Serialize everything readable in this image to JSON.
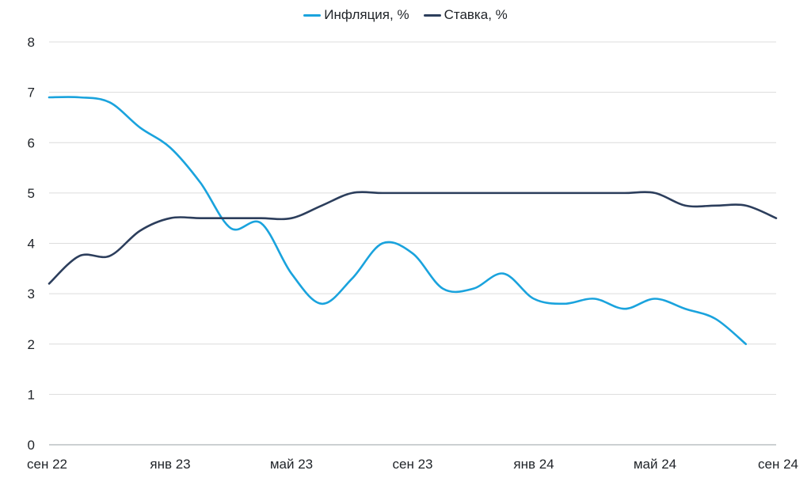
{
  "chart_data": {
    "type": "line",
    "title": "",
    "xlabel": "",
    "ylabel": "",
    "x_tick_labels": [
      "сен 22",
      "янв 23",
      "май 23",
      "сен 23",
      "янв 24",
      "май 24",
      "сен 24"
    ],
    "x_range": [
      "сен 22",
      "сен 24"
    ],
    "y_ticks": [
      0,
      1,
      2,
      3,
      4,
      5,
      6,
      7,
      8
    ],
    "ylim": [
      0,
      8
    ],
    "grid": "horizontal",
    "legend_position": "top-center",
    "series": [
      {
        "name": "Инфляция, %",
        "color": "#1aa3dd",
        "points": [
          [
            "сен 22",
            6.9
          ],
          [
            "окт 22",
            6.9
          ],
          [
            "ноя 22",
            6.8
          ],
          [
            "дек 22",
            6.3
          ],
          [
            "янв 23",
            5.9
          ],
          [
            "фев 23",
            5.2
          ],
          [
            "мар 23",
            4.3
          ],
          [
            "апр 23",
            4.4
          ],
          [
            "май 23",
            3.4
          ],
          [
            "июн 23",
            2.8
          ],
          [
            "июл 23",
            3.3
          ],
          [
            "авг 23",
            4.0
          ],
          [
            "сен 23",
            3.8
          ],
          [
            "окт 23",
            3.1
          ],
          [
            "ноя 23",
            3.1
          ],
          [
            "дек 23",
            3.4
          ],
          [
            "янв 24",
            2.9
          ],
          [
            "фев 24",
            2.8
          ],
          [
            "мар 24",
            2.9
          ],
          [
            "апр 24",
            2.7
          ],
          [
            "май 24",
            2.9
          ],
          [
            "июн 24",
            2.7
          ],
          [
            "июл 24",
            2.5
          ],
          [
            "авг 24",
            2.0
          ]
        ]
      },
      {
        "name": "Ставка, %",
        "color": "#2c3e5c",
        "points": [
          [
            "сен 22",
            3.2
          ],
          [
            "окт 22",
            3.75
          ],
          [
            "ноя 22",
            3.75
          ],
          [
            "дек 22",
            4.25
          ],
          [
            "янв 23",
            4.5
          ],
          [
            "фев 23",
            4.5
          ],
          [
            "мар 23",
            4.5
          ],
          [
            "апр 23",
            4.5
          ],
          [
            "май 23",
            4.5
          ],
          [
            "июн 23",
            4.75
          ],
          [
            "июл 23",
            5.0
          ],
          [
            "авг 23",
            5.0
          ],
          [
            "сен 23",
            5.0
          ],
          [
            "окт 23",
            5.0
          ],
          [
            "ноя 23",
            5.0
          ],
          [
            "дек 23",
            5.0
          ],
          [
            "янв 24",
            5.0
          ],
          [
            "фев 24",
            5.0
          ],
          [
            "мар 24",
            5.0
          ],
          [
            "апр 24",
            5.0
          ],
          [
            "май 24",
            5.0
          ],
          [
            "июн 24",
            4.75
          ],
          [
            "июл 24",
            4.75
          ],
          [
            "авг 24",
            4.75
          ],
          [
            "сен 24",
            4.5
          ]
        ]
      }
    ]
  }
}
